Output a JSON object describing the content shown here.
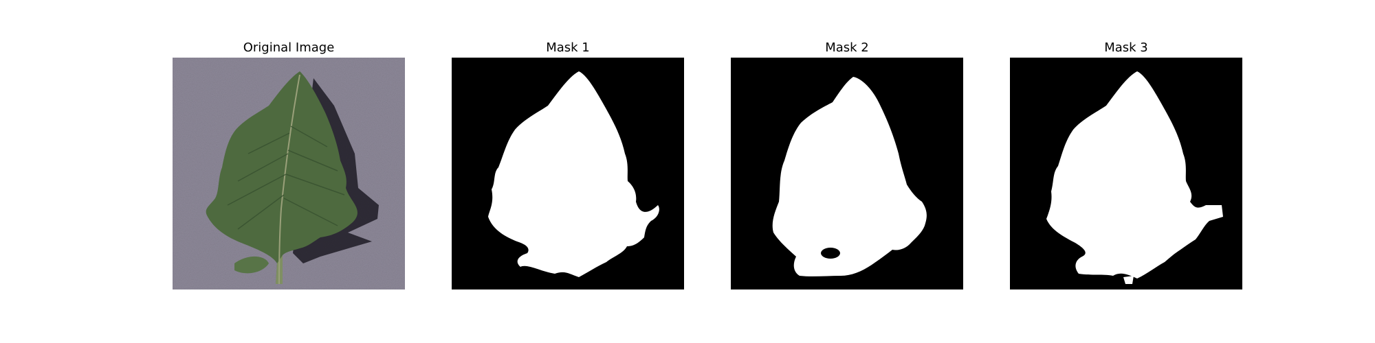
{
  "figure": {
    "panels": [
      {
        "title": "Original Image"
      },
      {
        "title": "Mask 1"
      },
      {
        "title": "Mask 2"
      },
      {
        "title": "Mask 3"
      }
    ]
  },
  "colors": {
    "background_gray": "#8a8596",
    "leaf_green": "#4f6b3e",
    "leaf_dark": "#2f4a2a",
    "mask_white": "#ffffff",
    "mask_black": "#000000"
  }
}
